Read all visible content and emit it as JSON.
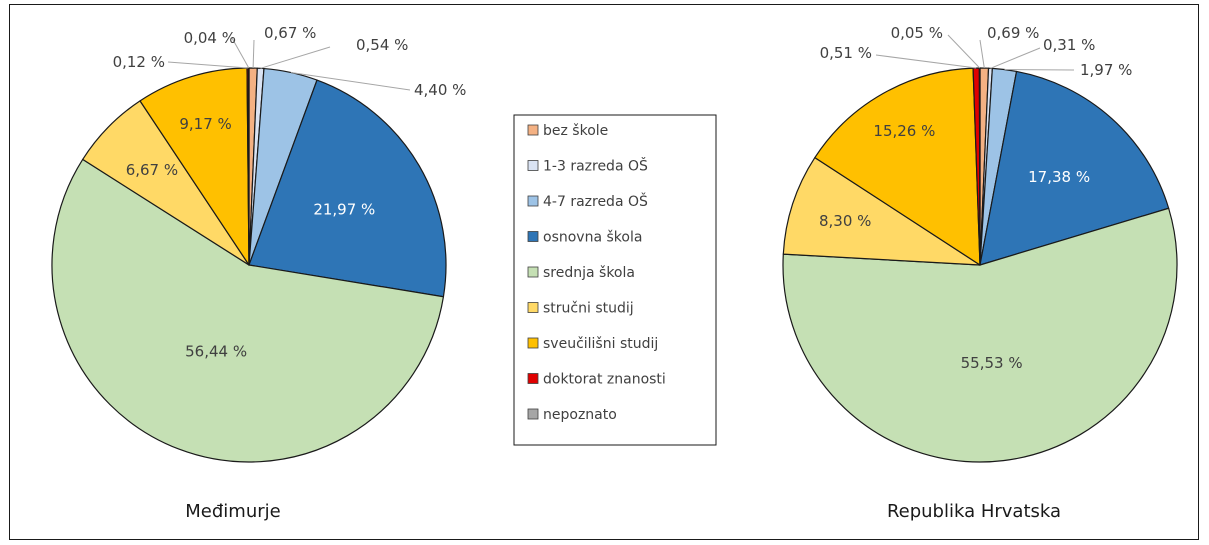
{
  "chart_data": {
    "type": "pie",
    "categories": [
      "bez škole",
      "1-3 razreda OŠ",
      "4-7 razreda OŠ",
      "osnovna škola",
      "srednja škola",
      "stručni studij",
      "sveučilišni studij",
      "doktorat znanosti",
      "nepoznato"
    ],
    "colors": [
      "#f4b183",
      "#dae3f3",
      "#9dc3e6",
      "#2e75b6",
      "#c5e0b4",
      "#ffd966",
      "#ffc000",
      "#e00000",
      "#a6a6a6"
    ],
    "legend_position": "center",
    "series": [
      {
        "name": "Međimurje",
        "values": [
          0.67,
          0.54,
          4.4,
          21.97,
          56.44,
          6.67,
          9.17,
          0.12,
          0.04
        ],
        "labels": [
          "0,67 %",
          "0,54 %",
          "4,40 %",
          "21,97 %",
          "56,44 %",
          "6,67 %",
          "9,17 %",
          "0,12 %",
          "0,04 %"
        ]
      },
      {
        "name": "Republika Hrvatska",
        "values": [
          0.69,
          0.31,
          1.97,
          17.38,
          55.53,
          8.3,
          15.26,
          0.51,
          0.05
        ],
        "labels": [
          "0,69 %",
          "0,31 %",
          "1,97 %",
          "17,38 %",
          "55,53 %",
          "8,30 %",
          "15,26 %",
          "0,51 %",
          "0,05 %"
        ]
      }
    ]
  }
}
